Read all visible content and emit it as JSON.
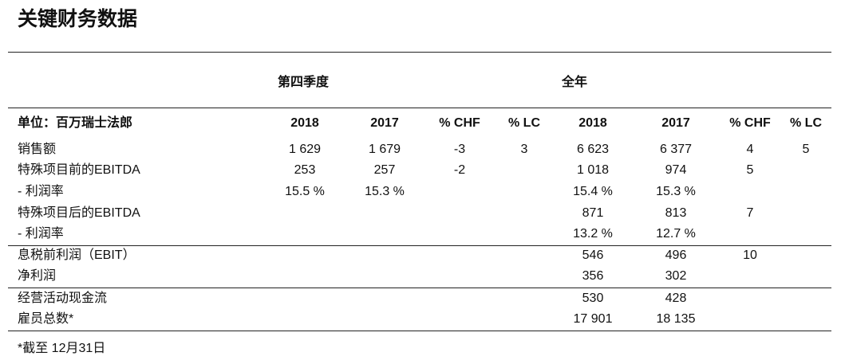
{
  "title": "关键财务数据",
  "groups": {
    "quarter": "第四季度",
    "full_year": "全年"
  },
  "header": {
    "label": "单位：百万瑞士法郎",
    "columns": [
      "2018",
      "2017",
      "% CHF",
      "% LC",
      "2018",
      "2017",
      "% CHF",
      "% LC"
    ]
  },
  "rows": [
    {
      "label": "销售额",
      "values": [
        "1 629",
        "1 679",
        "-3",
        "3",
        "6 623",
        "6 377",
        "4",
        "5"
      ]
    },
    {
      "label": "特殊项目前的EBITDA",
      "values": [
        "253",
        "257",
        "-2",
        "",
        "1 018",
        "974",
        "5",
        ""
      ]
    },
    {
      "label": "- 利润率",
      "values": [
        "15.5 %",
        "15.3 %",
        "",
        "",
        "15.4 %",
        "15.3 %",
        "",
        ""
      ]
    },
    {
      "label": "特殊项目后的EBITDA",
      "values": [
        "",
        "",
        "",
        "",
        "871",
        "813",
        "7",
        ""
      ]
    },
    {
      "label": "- 利润率",
      "values": [
        "",
        "",
        "",
        "",
        "13.2 %",
        "12.7 %",
        "",
        ""
      ]
    },
    {
      "label": "息税前利润（EBIT）",
      "values": [
        "",
        "",
        "",
        "",
        "546",
        "496",
        "10",
        ""
      ]
    },
    {
      "label": "净利润",
      "values": [
        "",
        "",
        "",
        "",
        "356",
        "302",
        "",
        ""
      ]
    },
    {
      "label": "经营活动现金流",
      "values": [
        "",
        "",
        "",
        "",
        "530",
        "428",
        "",
        ""
      ]
    },
    {
      "label": "雇员总数*",
      "values": [
        "",
        "",
        "",
        "",
        "17 901",
        "18 135",
        "",
        ""
      ]
    }
  ],
  "footnote": "*截至 12月31日"
}
